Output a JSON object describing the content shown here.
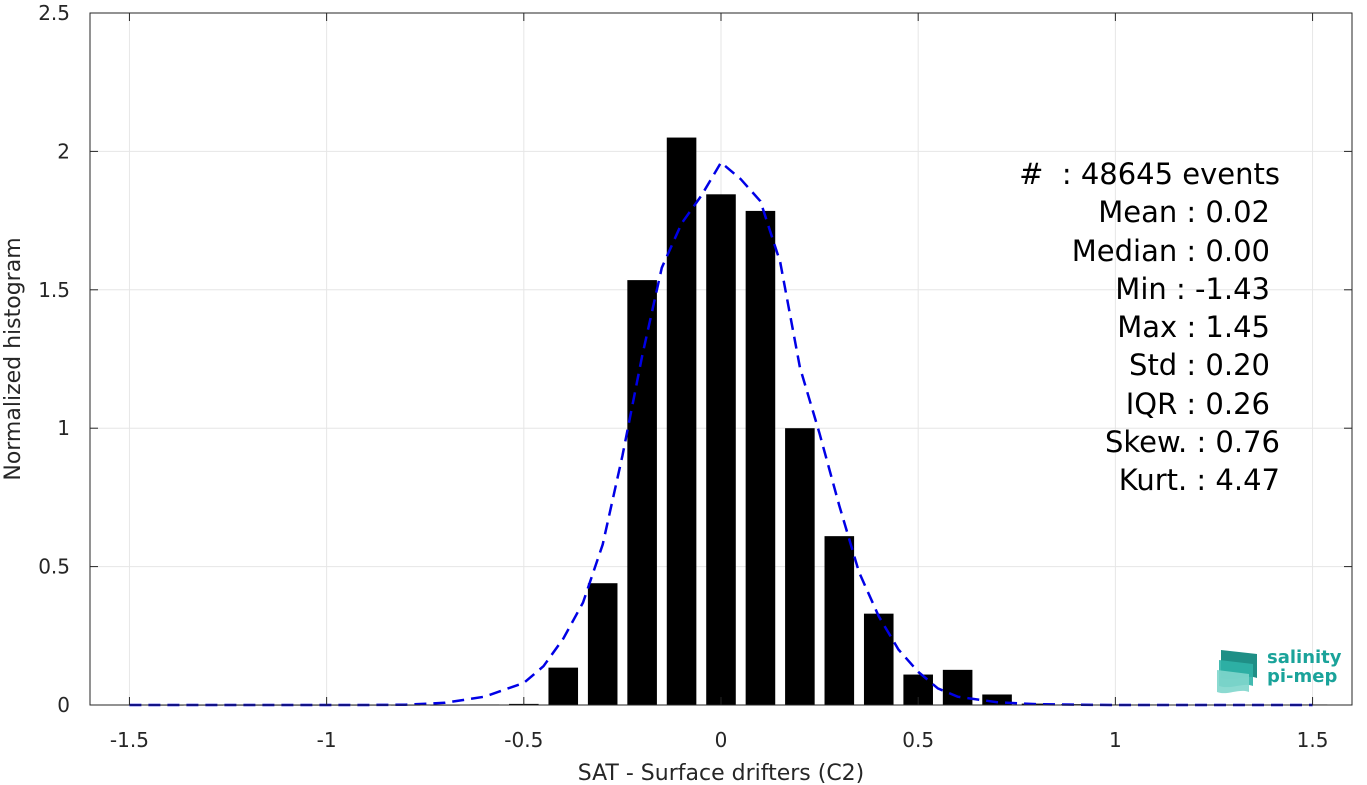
{
  "chart_data": {
    "type": "bar",
    "title": "",
    "xlabel": "SAT - Surface drifters (C2)",
    "ylabel": "Normalized histogram",
    "xlim": [
      -1.6,
      1.6
    ],
    "ylim": [
      0,
      2.5
    ],
    "grid": true,
    "x_ticks": [
      -1.5,
      -1,
      -0.5,
      0,
      0.5,
      1,
      1.5
    ],
    "x_tick_labels": [
      "-1.5",
      "-1",
      "-0.5",
      "0",
      "0.5",
      "1",
      "1.5"
    ],
    "y_ticks": [
      0,
      0.5,
      1,
      1.5,
      2,
      2.5
    ],
    "y_tick_labels": [
      "0",
      "0.5",
      "1",
      "1.5",
      "2",
      "2.5"
    ],
    "bars": {
      "x": [
        -1.5,
        -1.4,
        -1.3,
        -1.2,
        -1.1,
        -1.0,
        -0.9,
        -0.8,
        -0.7,
        -0.6,
        -0.5,
        -0.4,
        -0.3,
        -0.2,
        -0.1,
        0.0,
        0.1,
        0.2,
        0.3,
        0.4,
        0.5,
        0.6,
        0.7,
        0.8,
        0.9,
        1.0,
        1.1,
        1.2,
        1.3,
        1.4,
        1.5
      ],
      "values": [
        0.001,
        0,
        0,
        0,
        0,
        0,
        0,
        0,
        0,
        0.002,
        0.004,
        0.135,
        0.44,
        1.535,
        2.05,
        1.845,
        1.785,
        1.0,
        0.61,
        0.33,
        0.11,
        0.127,
        0.038,
        0.005,
        0.003,
        0.002,
        0.002,
        0.001,
        0.001,
        0.001,
        0.002
      ],
      "color": "#000000"
    },
    "fit_curve": {
      "style": "dashed",
      "color": "#0000e6",
      "x": [
        -1.5,
        -1.4,
        -1.3,
        -1.2,
        -1.1,
        -1.0,
        -0.9,
        -0.8,
        -0.7,
        -0.6,
        -0.5,
        -0.45,
        -0.4,
        -0.35,
        -0.3,
        -0.25,
        -0.2,
        -0.15,
        -0.1,
        -0.05,
        0.0,
        0.05,
        0.1,
        0.15,
        0.2,
        0.25,
        0.3,
        0.35,
        0.4,
        0.45,
        0.5,
        0.55,
        0.6,
        0.7,
        0.8,
        0.9,
        1.0,
        1.1,
        1.2,
        1.3,
        1.4,
        1.5
      ],
      "y": [
        0,
        0,
        0,
        0,
        0,
        0,
        0,
        0.001,
        0.008,
        0.03,
        0.08,
        0.14,
        0.24,
        0.37,
        0.58,
        0.9,
        1.26,
        1.58,
        1.74,
        1.84,
        1.96,
        1.9,
        1.82,
        1.6,
        1.22,
        0.98,
        0.72,
        0.48,
        0.32,
        0.2,
        0.12,
        0.06,
        0.03,
        0.01,
        0.003,
        0.001,
        0,
        0,
        0,
        0,
        0,
        0
      ]
    }
  },
  "stats": {
    "events": "#  : 48645 events",
    "mean": "Mean : 0.02",
    "median": "Median : 0.00",
    "min": "Min : -1.43",
    "max": "Max : 1.45",
    "std": "Std : 0.20",
    "iqr": "IQR : 0.26",
    "skew": "Skew. : 0.76",
    "kurt": "Kurt. : 4.47"
  },
  "logo": {
    "line1": "salinity",
    "line2": "pi-mep",
    "color": "#1aa39a"
  }
}
